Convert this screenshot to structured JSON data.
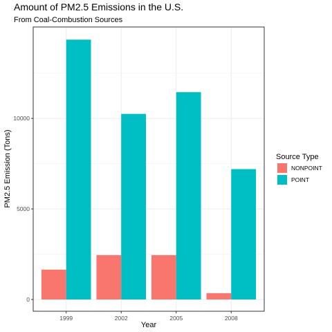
{
  "chart_data": {
    "type": "bar",
    "title": "Amount of PM2.5 Emissions in the U.S.",
    "subtitle": "From Coal-Combustion Sources",
    "xlabel": "Year",
    "ylabel": "PM2.5 Emission (Tons)",
    "categories": [
      "1999",
      "2002",
      "2005",
      "2008"
    ],
    "series": [
      {
        "name": "NONPOINT",
        "color": "#F8766D",
        "values": [
          1650,
          2450,
          2450,
          350
        ]
      },
      {
        "name": "POINT",
        "color": "#00BFC4",
        "values": [
          14350,
          10250,
          11450,
          7200
        ]
      }
    ],
    "ylim": [
      -650,
      15050
    ],
    "yticks": [
      0,
      5000,
      10000
    ],
    "ytick_labels": [
      "0",
      "5000",
      "10000"
    ],
    "grid": true,
    "legend": {
      "title": "Source Type",
      "position": "right"
    }
  }
}
